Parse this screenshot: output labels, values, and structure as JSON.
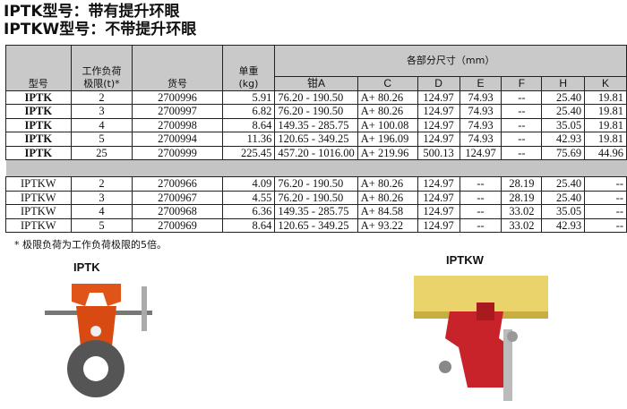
{
  "titles": [
    "IPTK型号：带有提升环眼",
    "IPTKW型号：不带提升环眼"
  ],
  "table": {
    "h_model": "型号",
    "h_wll": "工作负荷极限(t)*",
    "h_wll1": "工作负荷",
    "h_wll2": "极限(t)*",
    "h_part": "货号",
    "h_w1": "单重",
    "h_w2": "(kg)",
    "h_dims": "各部分尺寸（mm）",
    "dim_cols": [
      "钳A",
      "C",
      "D",
      "E",
      "F",
      "H",
      "K"
    ],
    "iptk_rows": [
      [
        "IPTK",
        "2",
        "2700996",
        "5.91",
        "76.20 - 190.50",
        "A+ 80.26",
        "124.97",
        "74.93",
        "--",
        "25.40",
        "19.81"
      ],
      [
        "IPTK",
        "3",
        "2700997",
        "6.82",
        "76.20 - 190.50",
        "A+ 80.26",
        "124.97",
        "74.93",
        "--",
        "25.40",
        "19.81"
      ],
      [
        "IPTK",
        "4",
        "2700998",
        "8.64",
        "149.35 - 285.75",
        "A+ 100.08",
        "124.97",
        "74.93",
        "--",
        "35.05",
        "19.81"
      ],
      [
        "IPTK",
        "5",
        "2700994",
        "11.36",
        "120.65 - 349.25",
        "A+ 196.09",
        "124.97",
        "74.93",
        "--",
        "42.93",
        "19.81"
      ],
      [
        "IPTK",
        "25",
        "2700999",
        "225.45",
        "457.20 - 1016.00",
        "A+ 219.96",
        "500.13",
        "124.97",
        "--",
        "75.69",
        "44.96"
      ]
    ],
    "iptkw_rows": [
      [
        "IPTKW",
        "2",
        "2700966",
        "4.09",
        "76.20 - 190.50",
        "A+ 80.26",
        "124.97",
        "--",
        "28.19",
        "25.40",
        "--"
      ],
      [
        "IPTKW",
        "3",
        "2700967",
        "4.55",
        "76.20 - 190.50",
        "A+ 80.26",
        "124.97",
        "--",
        "28.19",
        "25.40",
        "--"
      ],
      [
        "IPTKW",
        "4",
        "2700968",
        "6.36",
        "149.35 - 285.75",
        "A+ 84.58",
        "124.97",
        "--",
        "33.02",
        "35.05",
        "--"
      ],
      [
        "IPTKW",
        "5",
        "2700969",
        "8.64",
        "120.65 - 349.25",
        "A+ 93.22",
        "124.97",
        "--",
        "33.02",
        "42.93",
        "--"
      ]
    ]
  },
  "footnote": "* 极限负荷为工作负荷极限的5倍。",
  "images": {
    "iptk_label": "IPTK",
    "iptkw_label": "IPTKW"
  }
}
